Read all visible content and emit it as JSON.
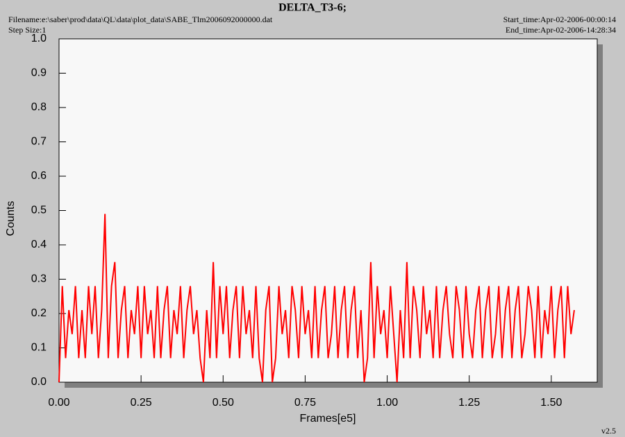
{
  "chart_data": {
    "type": "line",
    "title": "DELTA_T3-6;",
    "filename": "Filename:e:\\saber\\prod\\data\\QL\\data\\plot_data\\SABE_Tlm2006092000000.dat",
    "step_size": "Step Size:1",
    "start_time": "Start_time:Apr-02-2006-00:00:14",
    "end_time": "End_time:Apr-02-2006-14:28:34",
    "version": "v2.5",
    "x_label": "Frames[e5]",
    "y_label": "Counts",
    "xlim": [
      0,
      1.64
    ],
    "ylim": [
      0,
      1.0
    ],
    "xticks": [
      {
        "value": 0,
        "label": "0.00"
      },
      0.25,
      {
        "value": 0.5,
        "label": "0.50"
      },
      0.75,
      {
        "value": 1.0,
        "label": "1.00"
      },
      1.25,
      {
        "value": 1.5,
        "label": "1.50"
      }
    ],
    "yticks": [
      {
        "value": 0,
        "label": "0.0"
      },
      0.1,
      0.2,
      0.3,
      0.4,
      0.5,
      0.6,
      0.7,
      0.8,
      0.9,
      {
        "value": 1.0,
        "label": "1.0"
      }
    ],
    "x": [
      0,
      0.01,
      0.02,
      0.03,
      0.04,
      0.05,
      0.06,
      0.07,
      0.08,
      0.09,
      0.1,
      0.11,
      0.12,
      0.13,
      0.14,
      0.15,
      0.16,
      0.17,
      0.18,
      0.19,
      0.2,
      0.21,
      0.22,
      0.23,
      0.24,
      0.25,
      0.26,
      0.27,
      0.28,
      0.29,
      0.3,
      0.31,
      0.32,
      0.33,
      0.34,
      0.35,
      0.36,
      0.37,
      0.38,
      0.39,
      0.4,
      0.41,
      0.42,
      0.43,
      0.44,
      0.45,
      0.46,
      0.47,
      0.48,
      0.49,
      0.5,
      0.51,
      0.52,
      0.53,
      0.54,
      0.55,
      0.56,
      0.57,
      0.58,
      0.59,
      0.6,
      0.61,
      0.62,
      0.63,
      0.64,
      0.65,
      0.66,
      0.67,
      0.68,
      0.69,
      0.7,
      0.71,
      0.72,
      0.73,
      0.74,
      0.75,
      0.76,
      0.77,
      0.78,
      0.79,
      0.8,
      0.81,
      0.82,
      0.83,
      0.84,
      0.85,
      0.86,
      0.87,
      0.88,
      0.89,
      0.9,
      0.91,
      0.92,
      0.93,
      0.94,
      0.95,
      0.96,
      0.97,
      0.98,
      0.99,
      1.0,
      1.01,
      1.02,
      1.03,
      1.04,
      1.05,
      1.06,
      1.07,
      1.08,
      1.09,
      1.1,
      1.11,
      1.12,
      1.13,
      1.14,
      1.15,
      1.16,
      1.17,
      1.18,
      1.19,
      1.2,
      1.21,
      1.22,
      1.23,
      1.24,
      1.25,
      1.26,
      1.27,
      1.28,
      1.29,
      1.3,
      1.31,
      1.32,
      1.33,
      1.34,
      1.35,
      1.36,
      1.37,
      1.38,
      1.39,
      1.4,
      1.41,
      1.42,
      1.43,
      1.44,
      1.45,
      1.46,
      1.47,
      1.48,
      1.49,
      1.5,
      1.51,
      1.52,
      1.53,
      1.54,
      1.55,
      1.56,
      1.57
    ],
    "series": [
      {
        "color": "#ff0000",
        "values": [
          0,
          0.28,
          0.07,
          0.21,
          0.14,
          0.28,
          0.07,
          0.21,
          0.07,
          0.28,
          0.14,
          0.28,
          0.07,
          0.21,
          0.49,
          0.07,
          0.28,
          0.35,
          0.07,
          0.21,
          0.28,
          0.07,
          0.21,
          0.14,
          0.28,
          0.07,
          0.28,
          0.14,
          0.21,
          0.07,
          0.28,
          0.07,
          0.21,
          0.28,
          0.07,
          0.21,
          0.14,
          0.28,
          0.07,
          0.21,
          0.28,
          0.14,
          0.21,
          0.07,
          0,
          0.21,
          0.07,
          0.35,
          0.07,
          0.28,
          0.14,
          0.28,
          0.07,
          0.21,
          0.28,
          0.07,
          0.28,
          0.14,
          0.21,
          0.07,
          0.28,
          0.07,
          0,
          0.21,
          0.28,
          0,
          0.07,
          0.28,
          0.14,
          0.21,
          0.07,
          0.28,
          0.21,
          0.07,
          0.28,
          0.14,
          0.21,
          0.07,
          0.28,
          0.07,
          0.21,
          0.28,
          0.07,
          0.14,
          0.28,
          0.07,
          0.21,
          0.28,
          0.07,
          0.21,
          0.28,
          0.07,
          0.21,
          0,
          0.07,
          0.35,
          0.07,
          0.28,
          0.14,
          0.21,
          0.07,
          0.28,
          0.14,
          0,
          0.21,
          0.07,
          0.35,
          0.07,
          0.28,
          0.21,
          0.07,
          0.28,
          0.14,
          0.21,
          0.07,
          0.28,
          0.07,
          0.21,
          0.28,
          0.14,
          0.07,
          0.28,
          0.21,
          0.07,
          0.28,
          0.14,
          0.07,
          0.21,
          0.28,
          0.07,
          0.21,
          0.28,
          0.07,
          0.14,
          0.28,
          0.07,
          0.21,
          0.28,
          0.07,
          0.21,
          0.28,
          0.07,
          0.14,
          0.28,
          0.21,
          0.07,
          0.28,
          0.07,
          0.21,
          0.14,
          0.28,
          0.07,
          0.21,
          0.28,
          0.07,
          0.28,
          0.14,
          0.21
        ]
      }
    ]
  }
}
